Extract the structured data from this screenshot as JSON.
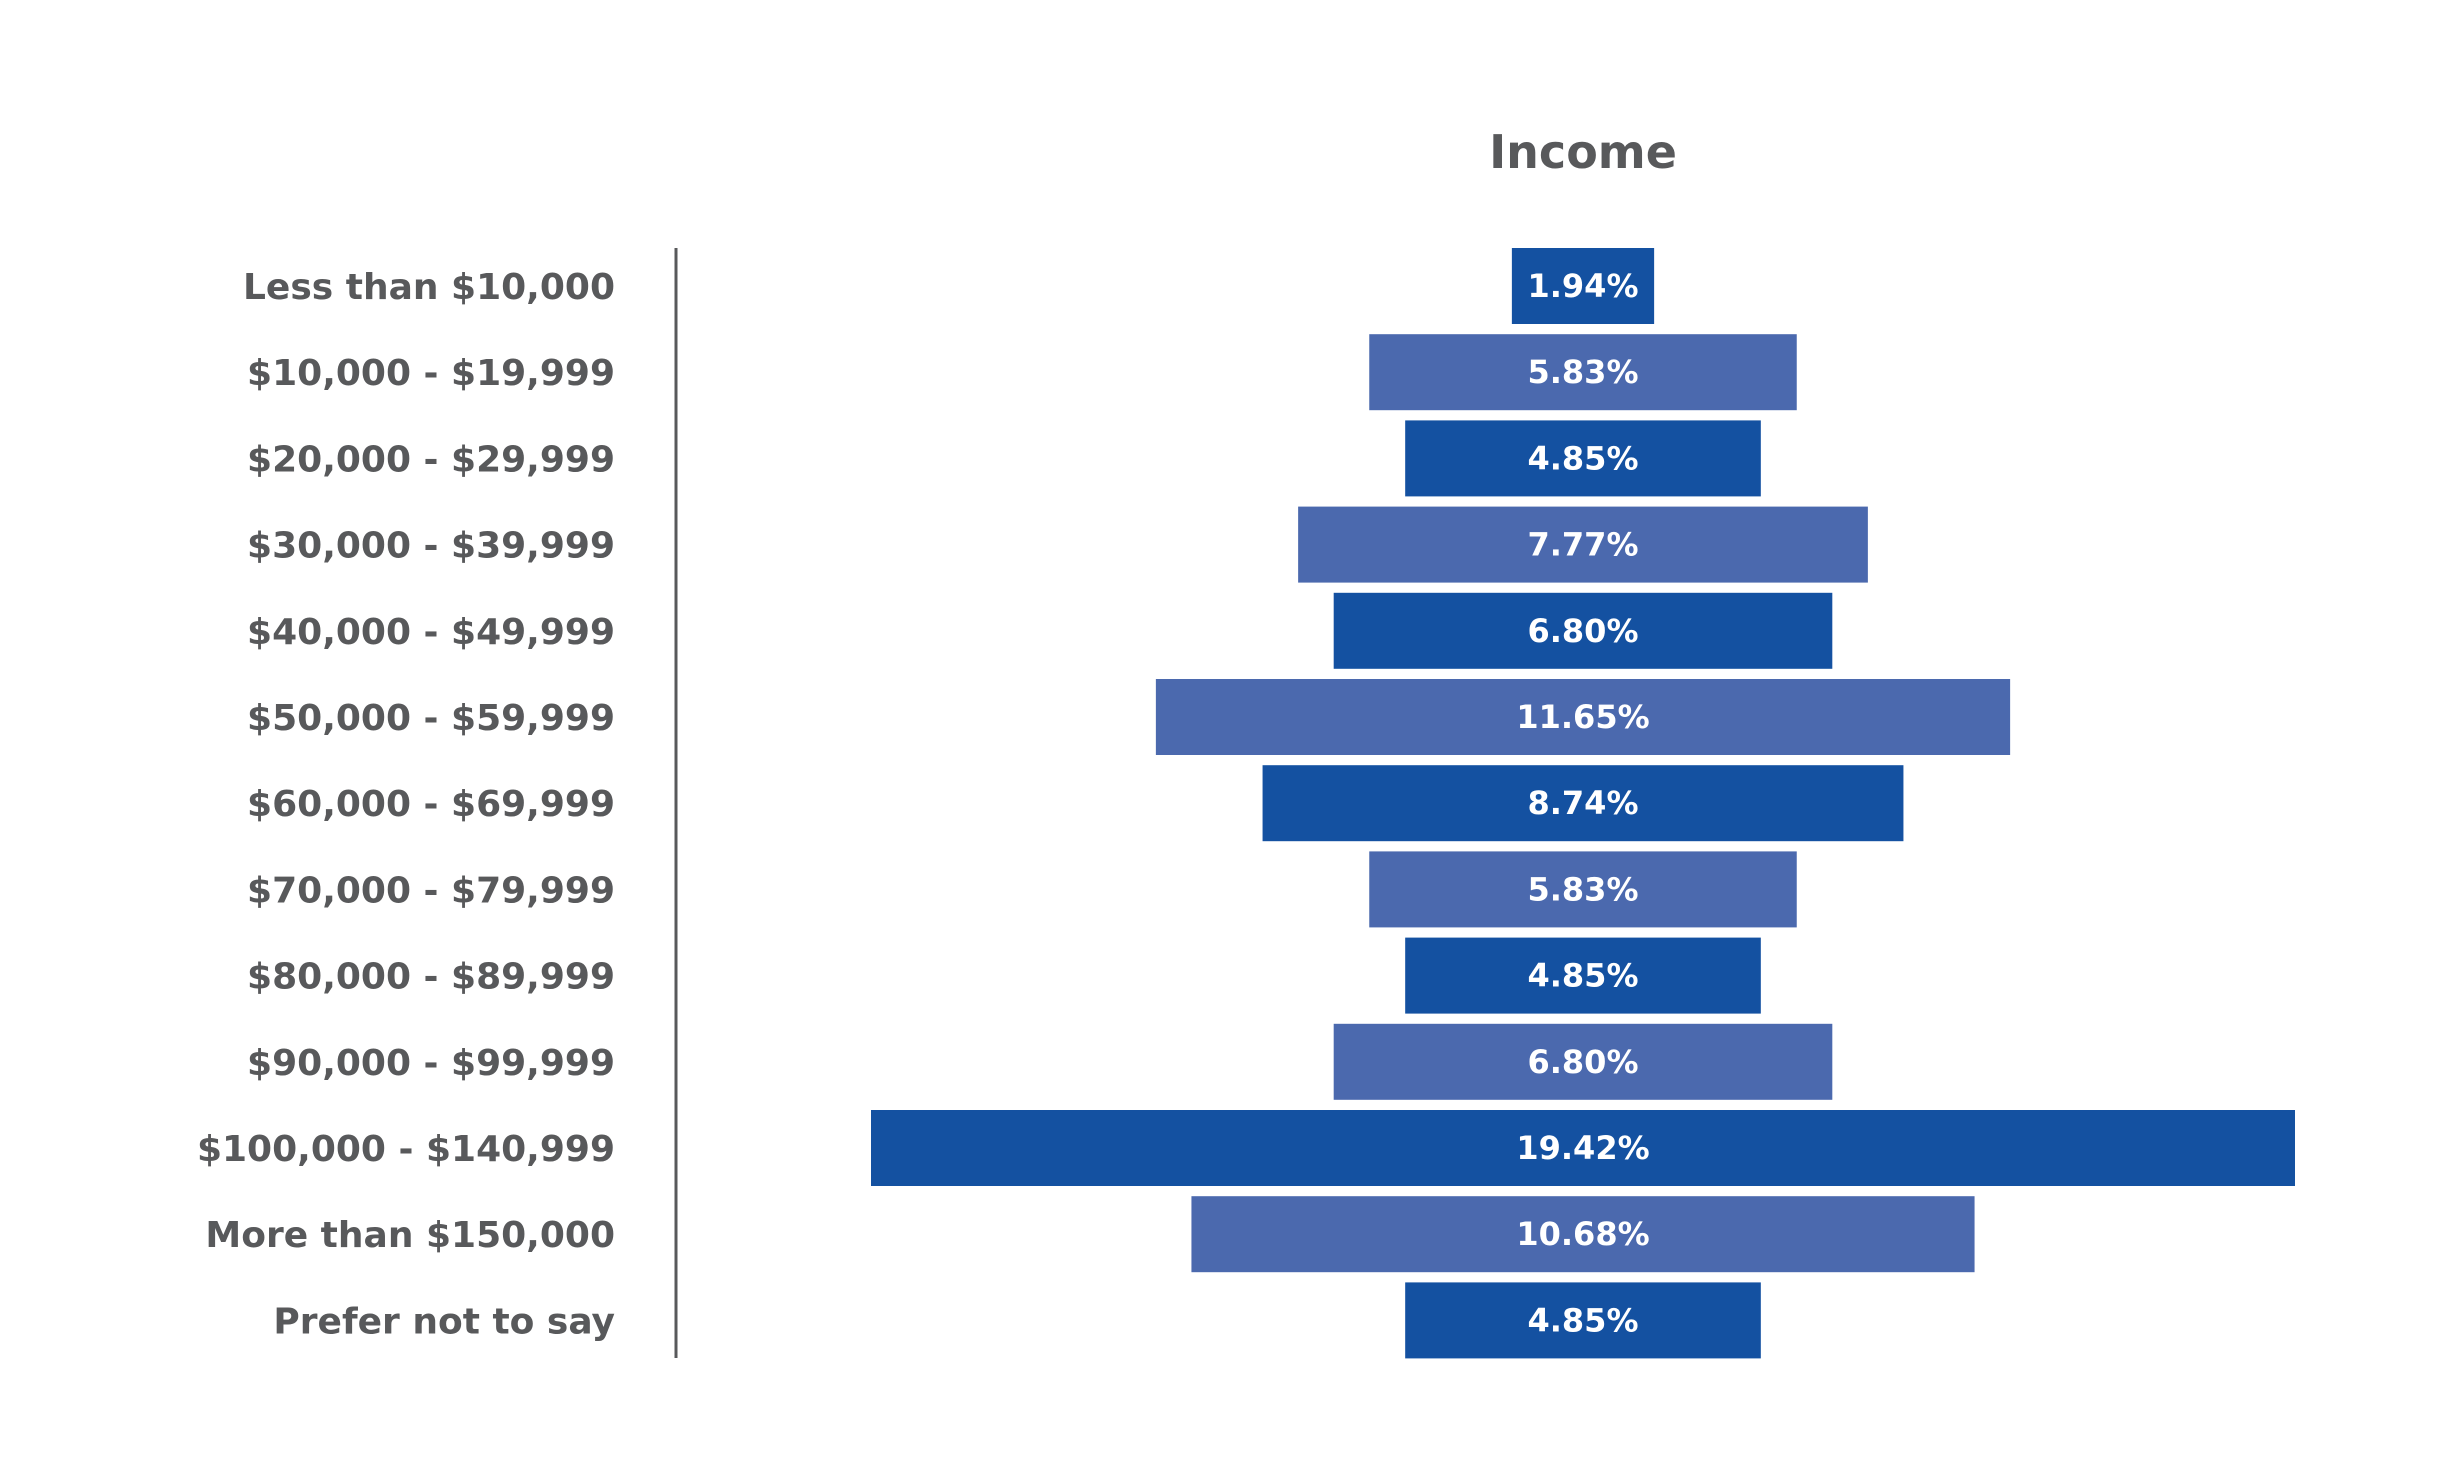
{
  "chart_data": {
    "type": "bar",
    "orientation": "horizontal-centered",
    "title": "Income",
    "xlabel": "",
    "ylabel": "",
    "categories": [
      "Less than $10,000",
      "$10,000 - $19,999",
      "$20,000 - $29,999",
      "$30,000 - $39,999",
      "$40,000 - $49,999",
      "$50,000 - $59,999",
      "$60,000 - $69,999",
      "$70,000 - $79,999",
      "$80,000 - $89,999",
      "$90,000 - $99,999",
      "$100,000 - $140,999",
      "More than $150,000",
      "Prefer not to say"
    ],
    "values": [
      1.94,
      5.83,
      4.85,
      7.77,
      6.8,
      11.65,
      8.74,
      5.83,
      4.85,
      6.8,
      19.42,
      10.68,
      4.85
    ],
    "data_labels": [
      "1.94%",
      "5.83%",
      "4.85%",
      "7.77%",
      "6.80%",
      "11.65%",
      "8.74%",
      "5.83%",
      "4.85%",
      "6.80%",
      "19.42%",
      "10.68%",
      "4.85%"
    ],
    "xlim": [
      0,
      19.42
    ],
    "grid": false,
    "legend": "none",
    "colors": [
      "#1451a1",
      "#4b69ae"
    ]
  }
}
